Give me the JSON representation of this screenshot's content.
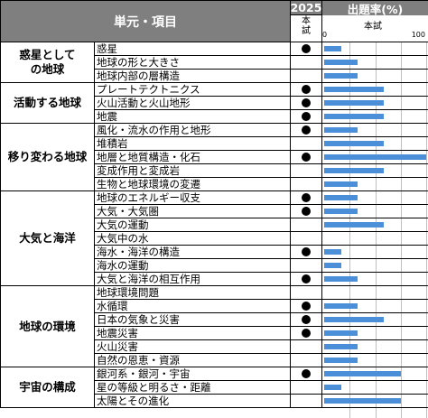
{
  "header": {
    "unit_item": "単元・項目",
    "year": "2025",
    "rate": "出題率(%)",
    "honshi": "本試",
    "scale_min": "0",
    "scale_max": "100",
    "scale_label": "本試"
  },
  "colors": {
    "header_bg": "#7f7f7f",
    "bar": "#4a8fd8"
  },
  "units": [
    {
      "name": "惑星としての地球",
      "rows": [
        0,
        2
      ]
    },
    {
      "name": "活動する地球",
      "rows": [
        3,
        5
      ]
    },
    {
      "name": "移り変わる地球",
      "rows": [
        6,
        10
      ]
    },
    {
      "name": "大気と海洋",
      "rows": [
        11,
        17
      ]
    },
    {
      "name": "地球の環境",
      "rows": [
        18,
        23
      ]
    },
    {
      "name": "宇宙の構成",
      "rows": [
        24,
        26
      ]
    }
  ],
  "items": [
    {
      "name": "惑星",
      "mark": true,
      "rate": 17
    },
    {
      "name": "地球の形と大きさ",
      "mark": false,
      "rate": 33
    },
    {
      "name": "地球内部の層構造",
      "mark": false,
      "rate": 33
    },
    {
      "name": "プレートテクトニクス",
      "mark": true,
      "rate": 58
    },
    {
      "name": "火山活動と火山地形",
      "mark": true,
      "rate": 58
    },
    {
      "name": "地震",
      "mark": true,
      "rate": 58
    },
    {
      "name": "風化・流水の作用と地形",
      "mark": true,
      "rate": 33
    },
    {
      "name": "堆積岩",
      "mark": false,
      "rate": 58
    },
    {
      "name": "地層と地質構造・化石",
      "mark": true,
      "rate": 100
    },
    {
      "name": "変成作用と変成岩",
      "mark": false,
      "rate": 58
    },
    {
      "name": "生物と地球環境の変遷",
      "mark": false,
      "rate": 33
    },
    {
      "name": "地球のエネルギー収支",
      "mark": true,
      "rate": 33
    },
    {
      "name": "大気・大気圏",
      "mark": true,
      "rate": 33
    },
    {
      "name": "大気の運動",
      "mark": false,
      "rate": 58
    },
    {
      "name": "大気中の水",
      "mark": false,
      "rate": 0
    },
    {
      "name": "海水・海洋の構造",
      "mark": true,
      "rate": 17
    },
    {
      "name": "海水の運動",
      "mark": false,
      "rate": 17
    },
    {
      "name": "大気と海洋の相互作用",
      "mark": true,
      "rate": 33
    },
    {
      "name": "地球環境問題",
      "mark": false,
      "rate": 0
    },
    {
      "name": "水循環",
      "mark": true,
      "rate": 33
    },
    {
      "name": "日本の気象と災害",
      "mark": true,
      "rate": 58
    },
    {
      "name": "地震災害",
      "mark": true,
      "rate": 33
    },
    {
      "name": "火山災害",
      "mark": false,
      "rate": 33
    },
    {
      "name": "自然の恩恵・資源",
      "mark": false,
      "rate": 33
    },
    {
      "name": "銀河系・銀河・宇宙",
      "mark": true,
      "rate": 75
    },
    {
      "name": "星の等級と明るさ・距離",
      "mark": false,
      "rate": 17
    },
    {
      "name": "太陽とその進化",
      "mark": false,
      "rate": 75
    }
  ]
}
